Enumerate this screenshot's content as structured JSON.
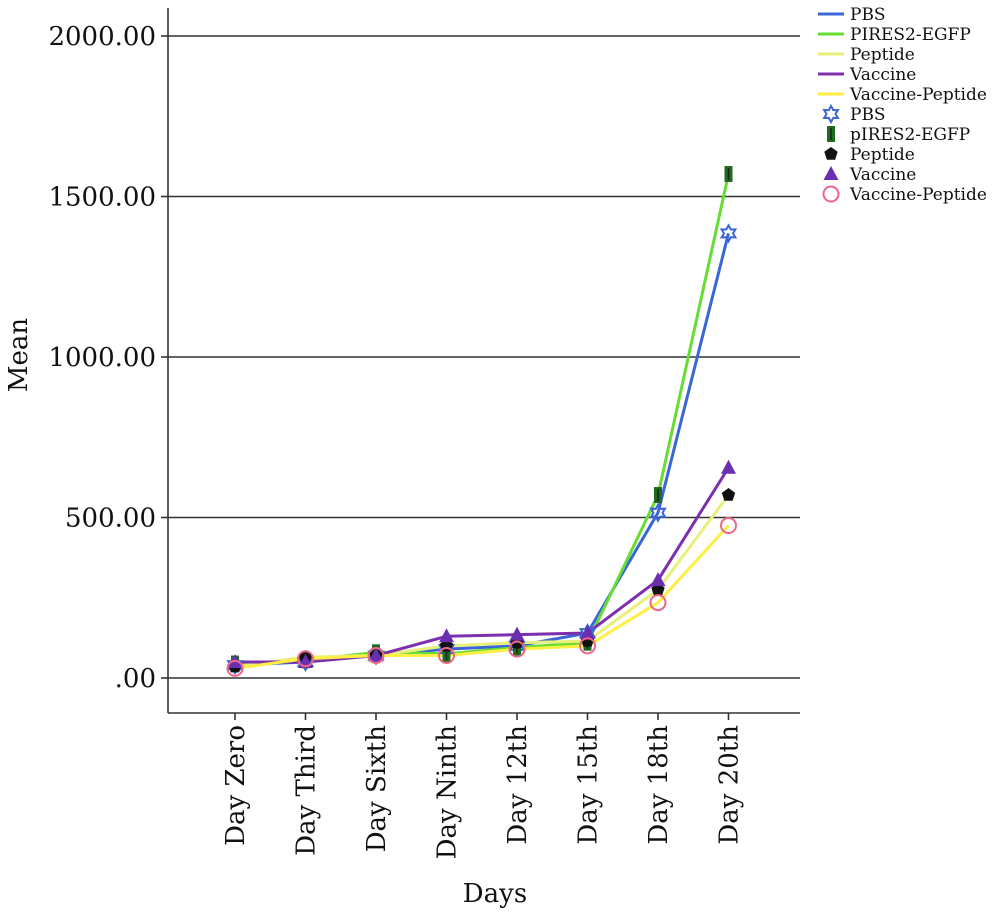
{
  "chart_data": {
    "type": "line",
    "title": "",
    "xlabel": "Days",
    "ylabel": "Mean",
    "categories": [
      "Day Zero",
      "Day Third",
      "Day Sixth",
      "Day Ninth",
      "Day 12th",
      "Day 15th",
      "Day 18th",
      "Day 20th"
    ],
    "ylim": [
      -110,
      2100
    ],
    "yticks": [
      0,
      500,
      1000,
      1500,
      2000
    ],
    "ytick_labels": [
      ".00",
      "500.00",
      "1000.00",
      "1500.00",
      "2000.00"
    ],
    "grid": "horizontal",
    "legend_position": "top-right",
    "series": [
      {
        "name": "PBS",
        "line_label": "PBS",
        "marker_label": "PBS",
        "color": "#3b66d6",
        "marker": "star",
        "marker_color": "#3b66d6",
        "values": [
          40,
          50,
          70,
          90,
          100,
          140,
          515,
          1385
        ]
      },
      {
        "name": "pIRES2-EGFP",
        "line_label": "PIRES2-EGFP",
        "marker_label": "pIRES2-EGFP",
        "color": "#66dd33",
        "marker": "bar",
        "marker_color": "#1f6b1f",
        "values": [
          45,
          55,
          80,
          75,
          95,
          110,
          570,
          1570
        ]
      },
      {
        "name": "Peptide",
        "line_label": "Peptide",
        "marker_label": "Peptide",
        "color": "#e8f07a",
        "marker": "pentagon",
        "marker_color": "#111111",
        "values": [
          35,
          65,
          70,
          100,
          110,
          115,
          275,
          570
        ]
      },
      {
        "name": "Vaccine",
        "line_label": "Vaccine",
        "marker_label": "Vaccine",
        "color": "#7d2fae",
        "marker": "triangle",
        "marker_color": "#6a2fb0",
        "values": [
          50,
          50,
          70,
          130,
          135,
          140,
          305,
          655
        ]
      },
      {
        "name": "Vaccine-Peptide",
        "line_label": "Vaccine-Peptide",
        "marker_label": "Vaccine-Peptide",
        "color": "#ffee44",
        "marker": "circle",
        "marker_color": "#ee6688",
        "values": [
          30,
          60,
          70,
          70,
          90,
          100,
          235,
          475
        ]
      }
    ]
  }
}
